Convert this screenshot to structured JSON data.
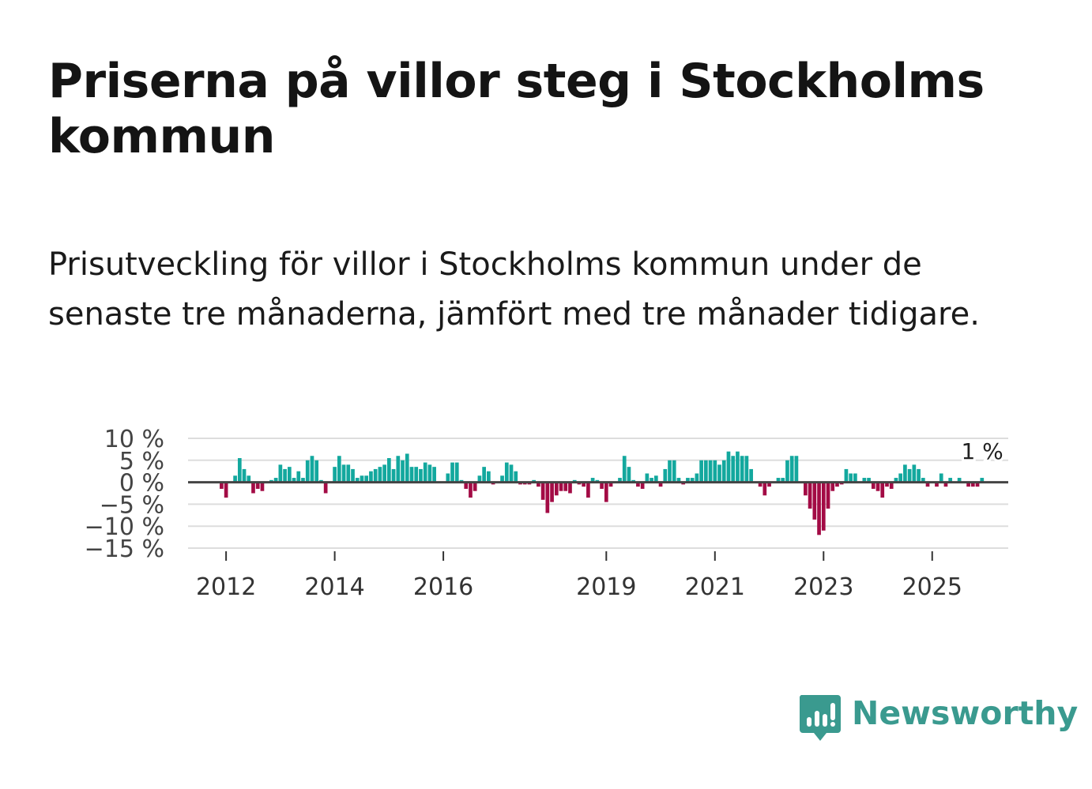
{
  "title": "Priserna på villor steg i Stockholms kommun",
  "subtitle": "Prisutveckling för villor i Stockholms kommun under de senaste tre månaderna, jämfört med tre månader tidigare.",
  "brand": {
    "name": "Newsworthy",
    "color": "#3a9a8f",
    "icon": "newsworthy-logo-icon"
  },
  "colors": {
    "positive": "#13a89e",
    "negative": "#a30b45",
    "zero_line": "#444444",
    "grid": "#dddddd"
  },
  "chart_data": {
    "type": "bar",
    "title": "Priserna på villor steg i Stockholms kommun",
    "xlabel": "",
    "ylabel": "",
    "ylim": [
      -15,
      10
    ],
    "y_ticks": [
      10,
      5,
      0,
      -5,
      -10,
      -15
    ],
    "y_tick_labels": [
      "10 %",
      "5 %",
      "0 %",
      "−5 %",
      "−10 %",
      "−15 %"
    ],
    "x_range": [
      2011.3,
      2026.4
    ],
    "x_ticks": [
      2012,
      2014,
      2016,
      2019,
      2021,
      2023,
      2025
    ],
    "x_tick_labels": [
      "2012",
      "2014",
      "2016",
      "2019",
      "2021",
      "2023",
      "2025"
    ],
    "last_value_label": "1 %",
    "series": [
      {
        "name": "Prisutveckling",
        "start": "2011-12",
        "step_months": 1,
        "values": [
          -1.5,
          -3.5,
          0,
          1.5,
          5.5,
          3,
          1.5,
          -2.5,
          -1.5,
          -2,
          0,
          0.5,
          1,
          4,
          3,
          3.5,
          1,
          2.5,
          1,
          5,
          6,
          5,
          0.5,
          -2.5,
          0,
          3.5,
          6,
          4,
          4,
          3,
          1,
          1.5,
          1.5,
          2.5,
          3,
          3.5,
          4,
          5.5,
          3,
          6,
          5,
          6.5,
          3.5,
          3.5,
          3,
          4.5,
          4,
          3.5,
          0,
          0,
          2,
          4.5,
          4.5,
          0.5,
          -1.5,
          -3.5,
          -2,
          1.5,
          3.5,
          2.5,
          -0.5,
          0,
          1.5,
          4.5,
          4,
          2.5,
          -0.5,
          -0.5,
          -0.5,
          0.5,
          -1,
          -4,
          -7,
          -4.5,
          -3,
          -2,
          -2,
          -2.5,
          0.5,
          -0.5,
          -1,
          -3.5,
          1,
          0.5,
          -1.5,
          -4.5,
          -1,
          0,
          1,
          6,
          3.5,
          0.5,
          -1,
          -1.5,
          2,
          1,
          1.5,
          -1,
          3,
          5,
          5,
          1,
          -0.5,
          1,
          1,
          2,
          5,
          5,
          5,
          5,
          4,
          5,
          7,
          6,
          7,
          6,
          6,
          3,
          0,
          -1,
          -3,
          -1,
          0,
          1,
          1,
          5,
          6,
          6,
          0,
          -3,
          -6,
          -8.5,
          -12,
          -11,
          -6,
          -2,
          -1,
          -0.5,
          3,
          2,
          2,
          0,
          1,
          1,
          -1.5,
          -2,
          -3.5,
          -1,
          -1.5,
          1,
          2,
          4,
          3,
          4,
          3,
          1,
          -1,
          0,
          -1,
          2,
          -1,
          1,
          0,
          1,
          0,
          -1,
          -1,
          -1,
          1
        ]
      }
    ]
  }
}
